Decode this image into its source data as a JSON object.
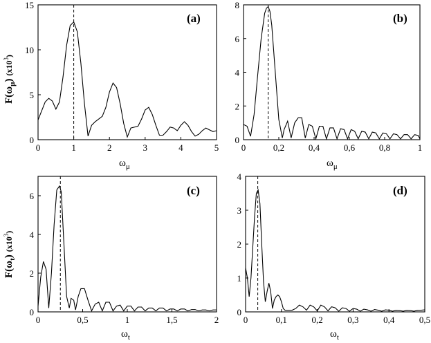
{
  "chart_data": [
    {
      "id": "a",
      "type": "line",
      "panel_label": "(a)",
      "xlabel": "ω",
      "xlabel_sub": "μ",
      "ylabel": "F(ω",
      "ylabel_sub": "μ",
      "ylabel_close": ")",
      "ylabel_unit": "(x10",
      "ylabel_unit_sup": "3",
      "ylabel_unit_close": ")",
      "xlim": [
        0,
        5
      ],
      "ylim": [
        0,
        15
      ],
      "xticks": [
        0,
        1,
        2,
        3,
        4,
        5
      ],
      "xtick_labels": [
        "0",
        "1",
        "2",
        "3",
        "4",
        "5"
      ],
      "yticks": [
        0,
        5,
        10,
        15
      ],
      "ytick_labels": [
        "0",
        "5",
        "10",
        "15"
      ],
      "vline_x": 1.0,
      "series": [
        {
          "x": [
            0,
            0.1,
            0.2,
            0.3,
            0.4,
            0.5,
            0.6,
            0.7,
            0.8,
            0.9,
            1.0,
            1.1,
            1.2,
            1.3,
            1.4,
            1.5,
            1.6,
            1.8,
            1.9,
            2.0,
            2.1,
            2.2,
            2.3,
            2.4,
            2.5,
            2.6,
            2.8,
            2.9,
            3.0,
            3.1,
            3.2,
            3.3,
            3.4,
            3.5,
            3.6,
            3.7,
            3.8,
            3.9,
            4.0,
            4.1,
            4.2,
            4.3,
            4.4,
            4.5,
            4.6,
            4.7,
            4.8,
            4.9,
            5.0
          ],
          "y": [
            2.2,
            3.2,
            4.2,
            4.6,
            4.3,
            3.4,
            4.2,
            7.0,
            10.5,
            12.7,
            13.1,
            12.0,
            8.5,
            4.0,
            0.4,
            1.6,
            2.0,
            2.6,
            3.6,
            5.3,
            6.3,
            5.8,
            4.0,
            1.8,
            0.3,
            1.3,
            1.5,
            2.3,
            3.3,
            3.6,
            2.8,
            1.6,
            0.5,
            0.5,
            0.9,
            1.4,
            1.3,
            1.0,
            1.6,
            2.0,
            1.6,
            0.9,
            0.4,
            0.6,
            1.0,
            1.3,
            1.1,
            0.9,
            1.0
          ]
        }
      ]
    },
    {
      "id": "b",
      "type": "line",
      "panel_label": "(b)",
      "xlabel": "ω",
      "xlabel_sub": "μ",
      "xlim": [
        0,
        1
      ],
      "ylim": [
        0,
        8
      ],
      "xticks": [
        0,
        0.2,
        0.4,
        0.6,
        0.8,
        1
      ],
      "xtick_labels": [
        "0",
        "0,2",
        "0,4",
        "0,6",
        "0,8",
        "1"
      ],
      "yticks": [
        0,
        2,
        4,
        6,
        8
      ],
      "ytick_labels": [
        "0",
        "2",
        "4",
        "6",
        "8"
      ],
      "vline_x": 0.14,
      "series": [
        {
          "x": [
            0,
            0.02,
            0.04,
            0.06,
            0.08,
            0.1,
            0.12,
            0.13,
            0.14,
            0.15,
            0.16,
            0.18,
            0.2,
            0.22,
            0.23,
            0.25,
            0.27,
            0.29,
            0.31,
            0.33,
            0.35,
            0.37,
            0.39,
            0.41,
            0.43,
            0.45,
            0.47,
            0.49,
            0.51,
            0.53,
            0.55,
            0.57,
            0.59,
            0.61,
            0.63,
            0.65,
            0.67,
            0.69,
            0.71,
            0.73,
            0.75,
            0.77,
            0.79,
            0.81,
            0.83,
            0.85,
            0.87,
            0.89,
            0.91,
            0.93,
            0.95,
            0.97,
            0.99,
            1.0
          ],
          "y": [
            0.9,
            0.8,
            0.2,
            1.5,
            3.8,
            6.0,
            7.5,
            7.8,
            7.9,
            7.6,
            6.8,
            4.0,
            1.2,
            0.1,
            0.6,
            1.1,
            0.1,
            1.0,
            1.3,
            1.3,
            0.1,
            0.9,
            0.8,
            0.05,
            0.8,
            0.8,
            0.05,
            0.7,
            0.7,
            0.05,
            0.65,
            0.6,
            0.05,
            0.6,
            0.5,
            0.05,
            0.5,
            0.45,
            0.05,
            0.45,
            0.4,
            0.05,
            0.4,
            0.35,
            0.05,
            0.35,
            0.3,
            0.05,
            0.3,
            0.3,
            0.05,
            0.3,
            0.25,
            0.05
          ]
        }
      ]
    },
    {
      "id": "c",
      "type": "line",
      "panel_label": "(c)",
      "xlabel": "ω",
      "xlabel_sub": "t",
      "ylabel": "F(ω",
      "ylabel_sub": "t",
      "ylabel_close": ")",
      "ylabel_unit": "(x10",
      "ylabel_unit_sup": "3",
      "ylabel_unit_close": ")",
      "xlim": [
        0,
        2
      ],
      "ylim": [
        0,
        7
      ],
      "xticks": [
        0,
        0.5,
        1,
        1.5,
        2
      ],
      "xtick_labels": [
        "0",
        "0,5",
        "1",
        "1,5",
        "2"
      ],
      "yticks": [
        0,
        2,
        4,
        6
      ],
      "ytick_labels": [
        "0",
        "2",
        "4",
        "6"
      ],
      "vline_x": 0.25,
      "series": [
        {
          "x": [
            0,
            0.03,
            0.06,
            0.09,
            0.12,
            0.15,
            0.18,
            0.21,
            0.24,
            0.26,
            0.29,
            0.32,
            0.35,
            0.37,
            0.4,
            0.42,
            0.45,
            0.48,
            0.52,
            0.56,
            0.6,
            0.64,
            0.68,
            0.72,
            0.76,
            0.8,
            0.84,
            0.88,
            0.92,
            0.96,
            1.0,
            1.04,
            1.08,
            1.12,
            1.16,
            1.2,
            1.24,
            1.28,
            1.32,
            1.36,
            1.4,
            1.44,
            1.48,
            1.52,
            1.56,
            1.6,
            1.64,
            1.68,
            1.72,
            1.76,
            1.8,
            1.84,
            1.88,
            1.92,
            1.96,
            2.0
          ],
          "y": [
            0.3,
            1.8,
            2.6,
            2.2,
            0.2,
            2.0,
            4.5,
            6.3,
            6.5,
            6.2,
            3.5,
            0.8,
            0.2,
            0.7,
            0.6,
            0.1,
            0.8,
            1.2,
            1.2,
            0.6,
            0.05,
            0.4,
            0.5,
            0.05,
            0.5,
            0.5,
            0.05,
            0.3,
            0.35,
            0.05,
            0.3,
            0.3,
            0.05,
            0.25,
            0.25,
            0.05,
            0.2,
            0.2,
            0.05,
            0.2,
            0.2,
            0.05,
            0.15,
            0.15,
            0.05,
            0.15,
            0.15,
            0.05,
            0.12,
            0.12,
            0.05,
            0.1,
            0.1,
            0.05,
            0.1,
            0.1
          ]
        }
      ]
    },
    {
      "id": "d",
      "type": "line",
      "panel_label": "(d)",
      "xlabel": "ω",
      "xlabel_sub": "t",
      "xlim": [
        0,
        0.5
      ],
      "ylim": [
        0,
        4
      ],
      "xticks": [
        0,
        0.1,
        0.2,
        0.3,
        0.4,
        0.5
      ],
      "xtick_labels": [
        "0",
        "0,1",
        "0,2",
        "0,3",
        "0,4",
        "0,5"
      ],
      "yticks": [
        0,
        1,
        2,
        3,
        4
      ],
      "ytick_labels": [
        "0",
        "1",
        "2",
        "3",
        "4"
      ],
      "vline_x": 0.034,
      "series": [
        {
          "x": [
            0,
            0.005,
            0.01,
            0.015,
            0.02,
            0.025,
            0.03,
            0.035,
            0.04,
            0.045,
            0.05,
            0.055,
            0.06,
            0.065,
            0.07,
            0.075,
            0.08,
            0.085,
            0.09,
            0.095,
            0.1,
            0.105,
            0.11,
            0.12,
            0.13,
            0.14,
            0.15,
            0.16,
            0.17,
            0.18,
            0.19,
            0.2,
            0.21,
            0.22,
            0.23,
            0.24,
            0.25,
            0.26,
            0.27,
            0.28,
            0.29,
            0.3,
            0.31,
            0.32,
            0.33,
            0.34,
            0.35,
            0.36,
            0.37,
            0.38,
            0.39,
            0.4,
            0.41,
            0.42,
            0.43,
            0.44,
            0.45,
            0.46,
            0.47,
            0.48,
            0.49,
            0.5
          ],
          "y": [
            1.3,
            1.0,
            0.45,
            1.0,
            1.9,
            2.8,
            3.5,
            3.6,
            3.2,
            2.0,
            0.9,
            0.3,
            0.6,
            0.85,
            0.6,
            0.1,
            0.35,
            0.45,
            0.5,
            0.45,
            0.3,
            0.1,
            0.05,
            0.05,
            0.05,
            0.1,
            0.2,
            0.15,
            0.05,
            0.2,
            0.15,
            0.03,
            0.2,
            0.15,
            0.03,
            0.15,
            0.12,
            0.02,
            0.12,
            0.1,
            0.02,
            0.1,
            0.08,
            0.02,
            0.08,
            0.06,
            0.02,
            0.07,
            0.05,
            0.02,
            0.06,
            0.05,
            0.02,
            0.05,
            0.04,
            0.02,
            0.05,
            0.04,
            0.02,
            0.05,
            0.05,
            0.06
          ]
        }
      ]
    }
  ]
}
